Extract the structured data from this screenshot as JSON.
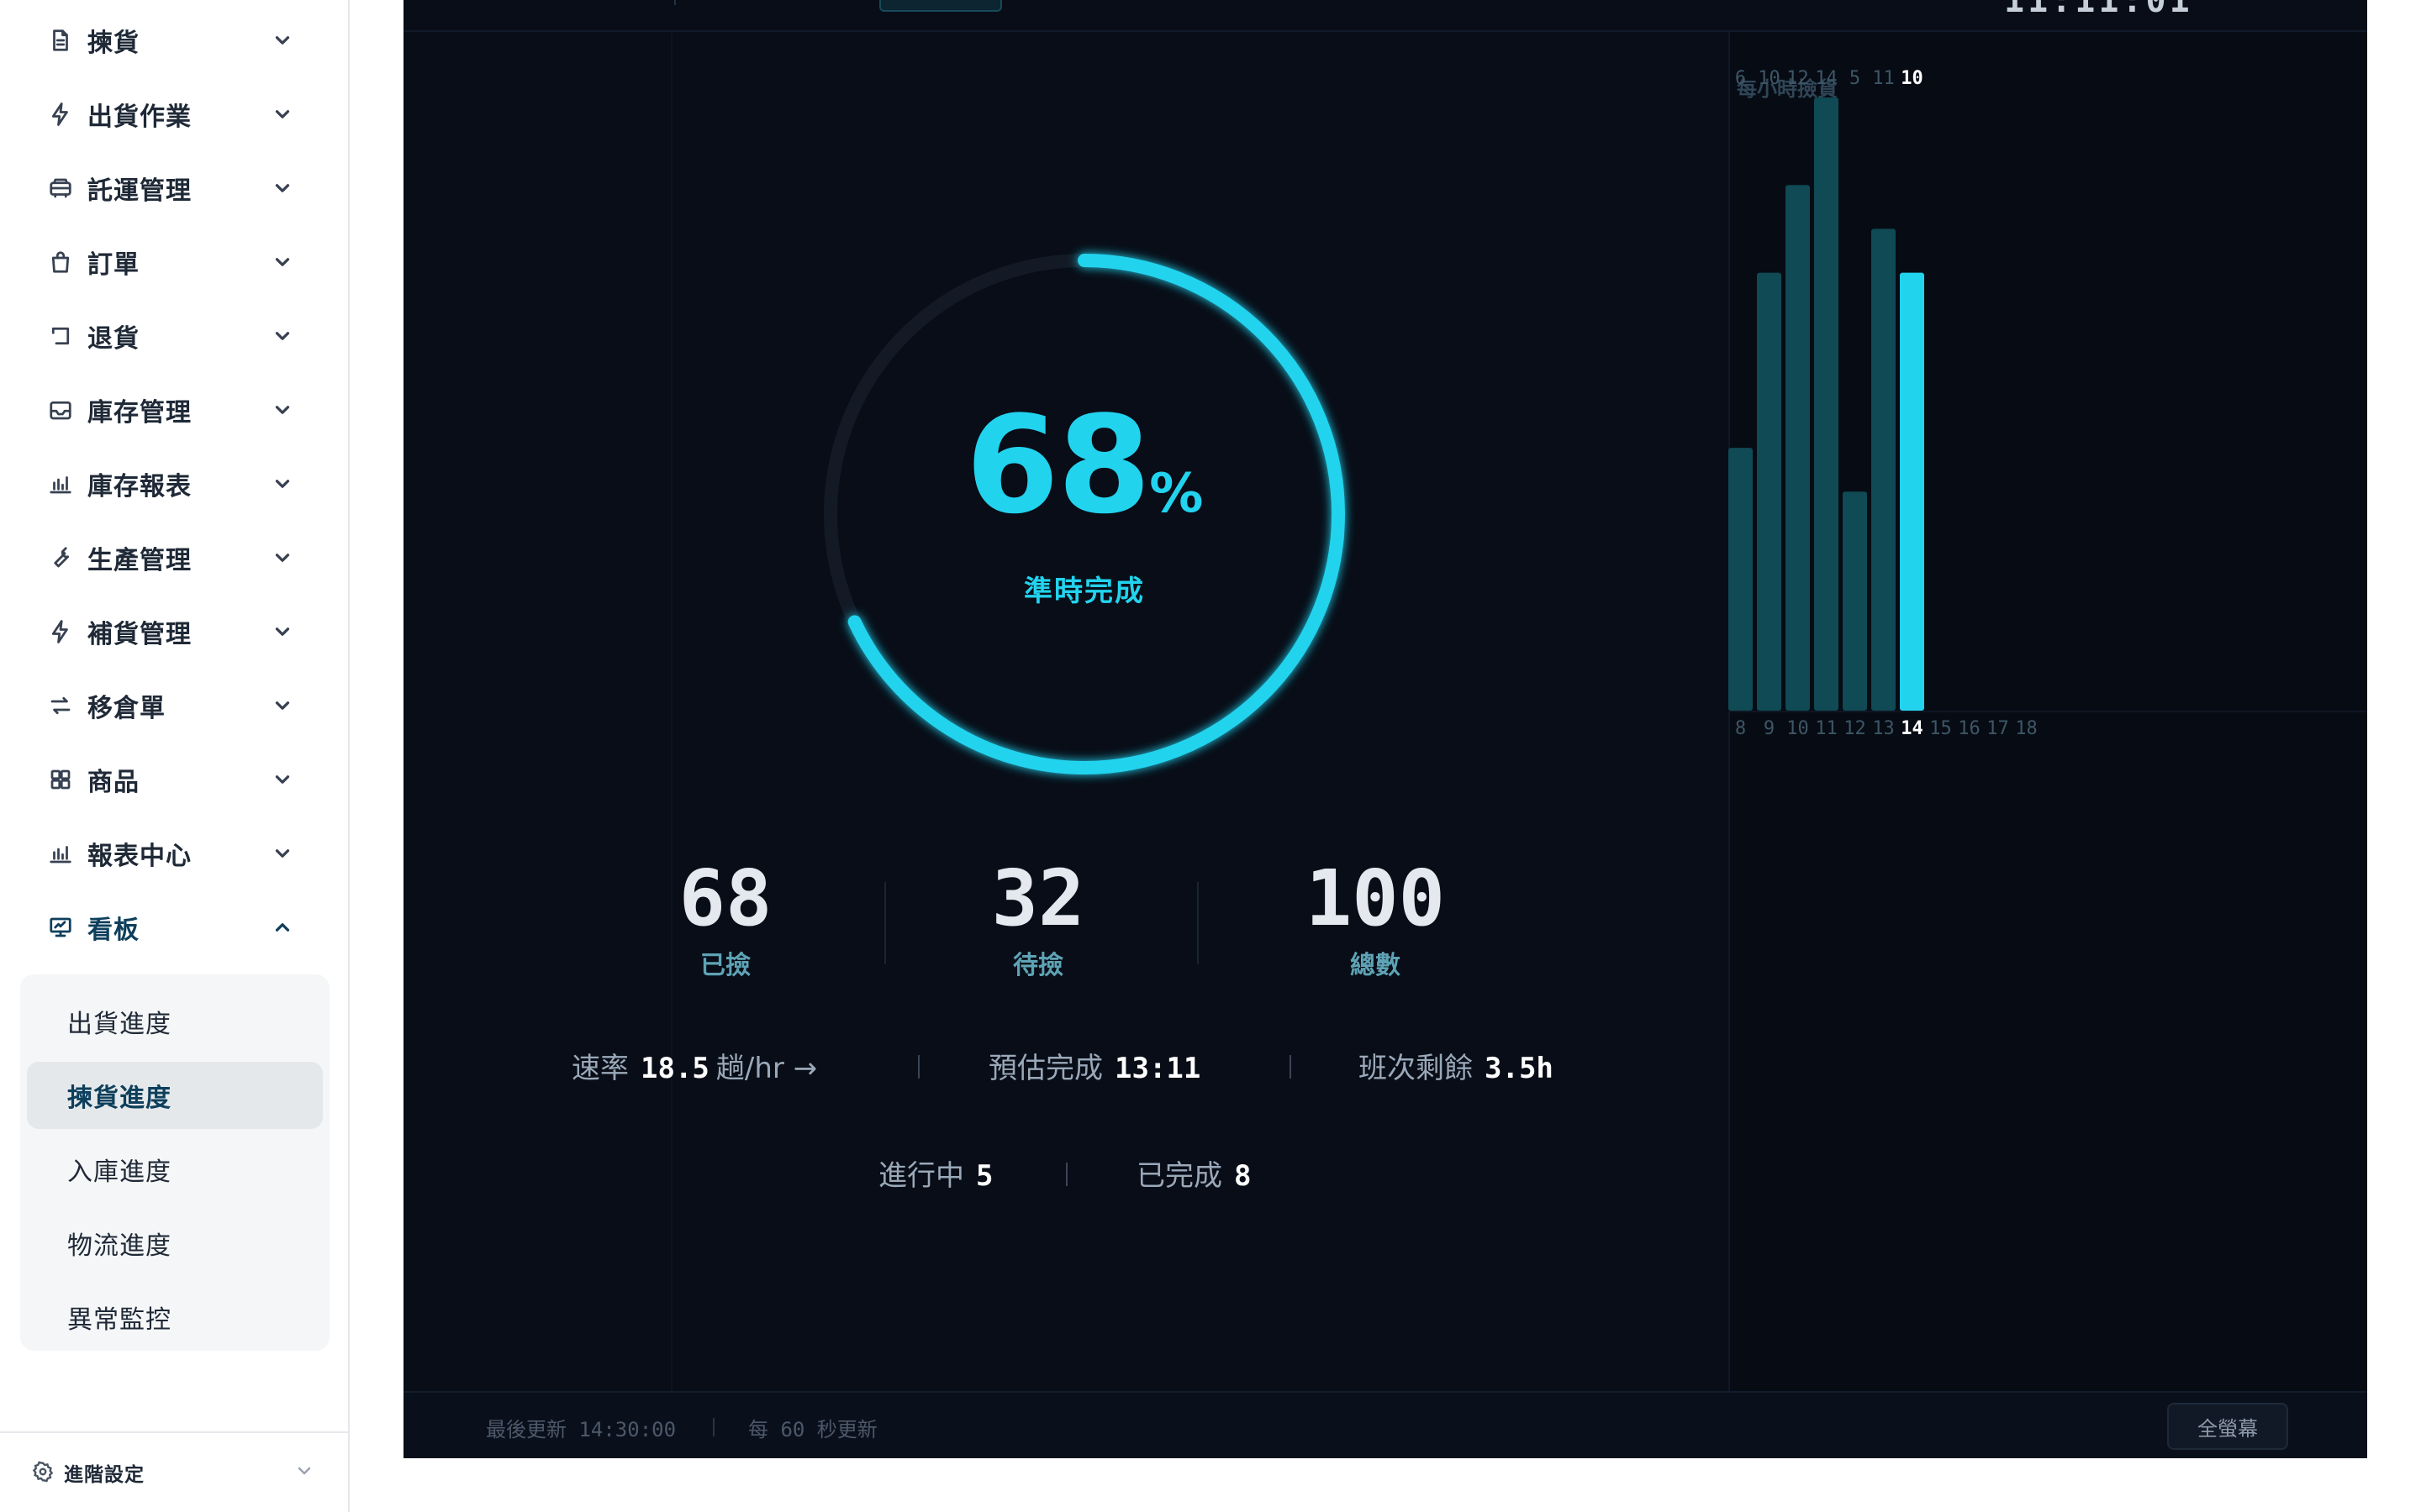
{
  "sidebar": {
    "items": [
      {
        "label": "揀貨",
        "icon": "document-icon",
        "expanded": false
      },
      {
        "label": "出貨作業",
        "icon": "bolt-icon",
        "expanded": false
      },
      {
        "label": "託運管理",
        "icon": "truck-icon",
        "expanded": false
      },
      {
        "label": "訂單",
        "icon": "shopping-bag-icon",
        "expanded": false
      },
      {
        "label": "退貨",
        "icon": "return-icon",
        "expanded": false
      },
      {
        "label": "庫存管理",
        "icon": "inbox-icon",
        "expanded": false
      },
      {
        "label": "庫存報表",
        "icon": "bar-chart-icon",
        "expanded": false
      },
      {
        "label": "生產管理",
        "icon": "wrench-icon",
        "expanded": false
      },
      {
        "label": "補貨管理",
        "icon": "bolt-icon",
        "expanded": false
      },
      {
        "label": "移倉單",
        "icon": "transfer-icon",
        "expanded": false
      },
      {
        "label": "商品",
        "icon": "grid-icon",
        "expanded": false
      },
      {
        "label": "報表中心",
        "icon": "bar-chart-icon",
        "expanded": false
      },
      {
        "label": "看板",
        "icon": "presentation-icon",
        "expanded": true
      }
    ],
    "submenu": [
      {
        "label": "出貨進度",
        "active": false
      },
      {
        "label": "揀貨進度",
        "active": true
      },
      {
        "label": "入庫進度",
        "active": false
      },
      {
        "label": "物流進度",
        "active": false
      },
      {
        "label": "異常監控",
        "active": false
      }
    ],
    "advanced": {
      "label": "進階設定",
      "icon": "gear-icon"
    }
  },
  "dashboard": {
    "progress": {
      "value": 68,
      "percent_sign": "%",
      "label": "準時完成"
    },
    "stats": [
      {
        "value": "68",
        "label": "已撿"
      },
      {
        "value": "32",
        "label": "待撿"
      },
      {
        "value": "100",
        "label": "總數"
      }
    ],
    "info": {
      "rate_label": "速率",
      "rate_value": "18.5",
      "rate_unit": "趟/hr →",
      "eta_label": "預估完成",
      "eta_value": "13:11",
      "shift_label": "班次剩餘",
      "shift_value": "3.5h",
      "in_progress_label": "進行中",
      "in_progress_value": "5",
      "done_label": "已完成",
      "done_value": "8"
    },
    "footer": {
      "last_update": "最後更新 14:30:00",
      "refresh": "每 60 秒更新",
      "fullscreen": "全螢幕"
    }
  },
  "chart_data": {
    "type": "bar",
    "title": "每小時撿貨",
    "categories": [
      "8",
      "9",
      "10",
      "11",
      "12",
      "13",
      "14",
      "15",
      "16",
      "17",
      "18"
    ],
    "values": [
      6,
      10,
      12,
      14,
      5,
      11,
      10,
      null,
      null,
      null,
      null
    ],
    "highlight_category": "14",
    "colors": {
      "bar": "#0f4a55",
      "highlight": "#22d3ee"
    }
  },
  "colors": {
    "accent": "#22d3ee",
    "panel_bg": "#080d17",
    "sidebar_active": "#0e3f5c"
  }
}
